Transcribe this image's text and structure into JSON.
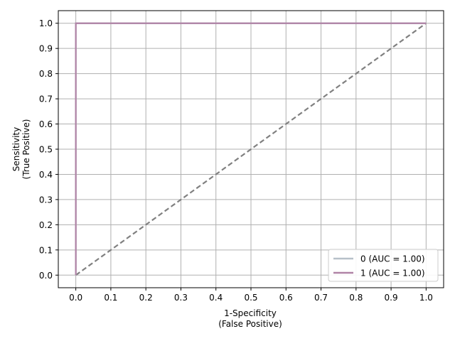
{
  "chart_data": {
    "type": "line",
    "xlabel_lines": [
      "1-Specificity",
      "(False Positive)"
    ],
    "ylabel_lines": [
      "Sensitivity",
      "(True Positive)"
    ],
    "xlim": [
      -0.05,
      1.05
    ],
    "ylim": [
      -0.05,
      1.05
    ],
    "xticks": [
      "0.0",
      "0.1",
      "0.2",
      "0.3",
      "0.4",
      "0.5",
      "0.6",
      "0.7",
      "0.8",
      "0.9",
      "1.0"
    ],
    "yticks": [
      "0.0",
      "0.1",
      "0.2",
      "0.3",
      "0.4",
      "0.5",
      "0.6",
      "0.7",
      "0.8",
      "0.9",
      "1.0"
    ],
    "grid": true,
    "legend_position": "lower-right",
    "series": [
      {
        "name": "0 (AUC = 1.00)",
        "color": "#b7c0c9",
        "x": [
          0.0,
          0.0,
          1.0
        ],
        "y": [
          0.0,
          1.0,
          1.0
        ]
      },
      {
        "name": "1 (AUC = 1.00)",
        "color": "#b083a6",
        "x": [
          0.0,
          0.0,
          1.0
        ],
        "y": [
          0.0,
          1.0,
          1.0
        ]
      }
    ],
    "reference_line": {
      "color": "#808080",
      "style": "dashed",
      "x": [
        0.0,
        1.0
      ],
      "y": [
        0.0,
        1.0
      ]
    }
  }
}
